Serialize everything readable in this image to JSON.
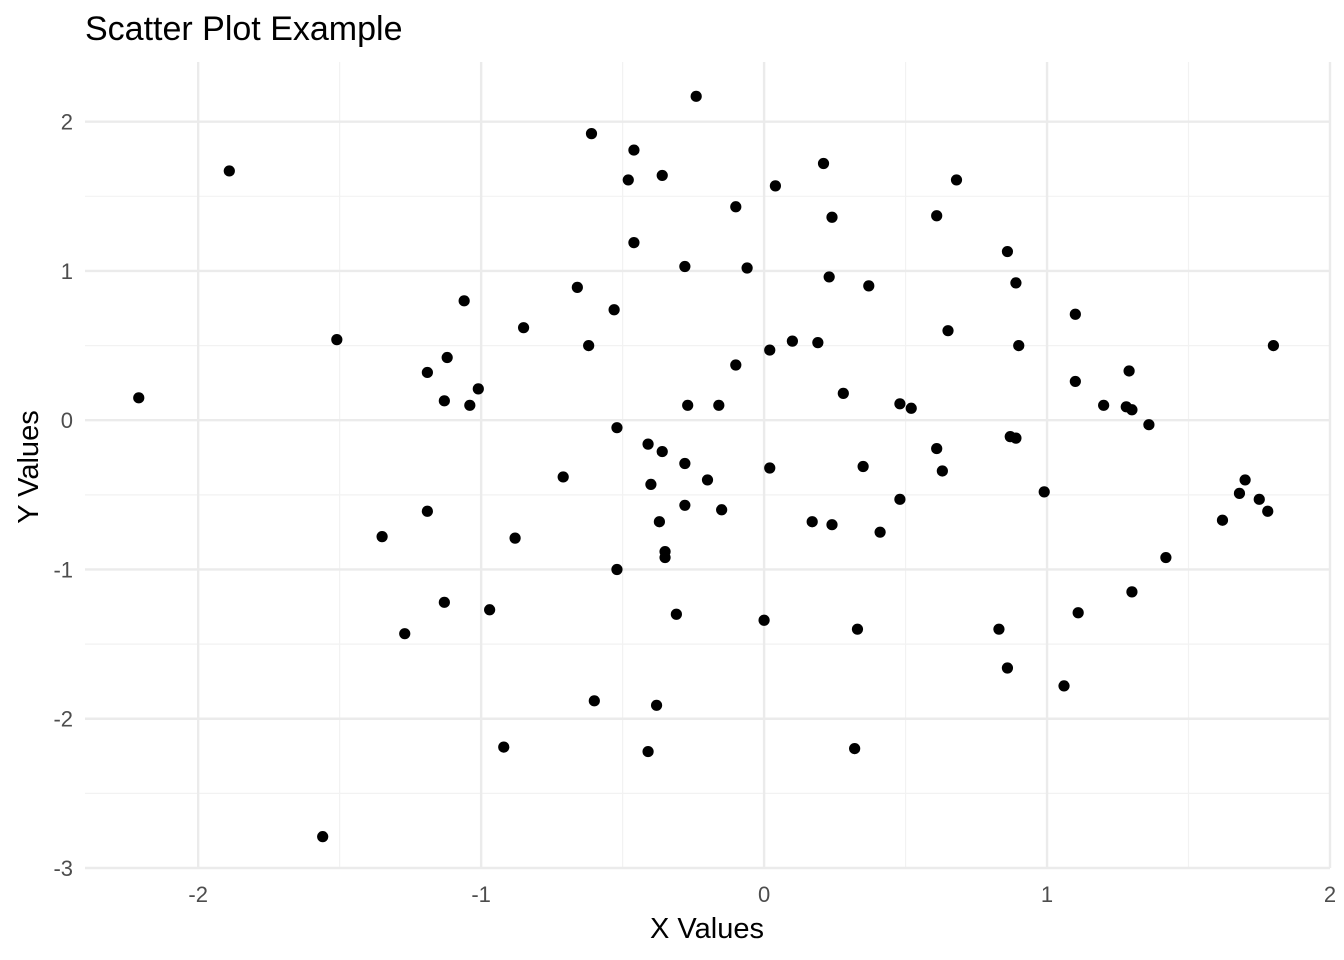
{
  "chart_data": {
    "type": "scatter",
    "title": "Scatter Plot Example",
    "xlabel": "X Values",
    "ylabel": "Y Values",
    "xlim": [
      -2.4,
      2.0
    ],
    "ylim": [
      -3.0,
      2.4
    ],
    "x_ticks": [
      -2,
      -1,
      0,
      1,
      2
    ],
    "y_ticks": [
      -3,
      -2,
      -1,
      0,
      1,
      2
    ],
    "x_tick_labels": [
      "-2",
      "-1",
      "0",
      "1",
      "2"
    ],
    "y_tick_labels": [
      "-3",
      "-2",
      "-1",
      "0",
      "1",
      "2"
    ],
    "grid": true,
    "point_color": "#000000",
    "points": [
      {
        "x": -0.24,
        "y": 2.17
      },
      {
        "x": -0.61,
        "y": 1.92
      },
      {
        "x": -0.46,
        "y": 1.81
      },
      {
        "x": -1.89,
        "y": 1.67
      },
      {
        "x": 0.21,
        "y": 1.72
      },
      {
        "x": -0.48,
        "y": 1.61
      },
      {
        "x": -0.36,
        "y": 1.64
      },
      {
        "x": 0.68,
        "y": 1.61
      },
      {
        "x": 0.04,
        "y": 1.57
      },
      {
        "x": -0.1,
        "y": 1.43
      },
      {
        "x": 0.24,
        "y": 1.36
      },
      {
        "x": 0.61,
        "y": 1.37
      },
      {
        "x": -0.46,
        "y": 1.19
      },
      {
        "x": 0.86,
        "y": 1.13
      },
      {
        "x": -0.28,
        "y": 1.03
      },
      {
        "x": -0.06,
        "y": 1.02
      },
      {
        "x": 0.23,
        "y": 0.96
      },
      {
        "x": 0.37,
        "y": 0.9
      },
      {
        "x": 0.89,
        "y": 0.92
      },
      {
        "x": -0.66,
        "y": 0.89
      },
      {
        "x": -1.06,
        "y": 0.8
      },
      {
        "x": -0.53,
        "y": 0.74
      },
      {
        "x": 1.1,
        "y": 0.71
      },
      {
        "x": -0.85,
        "y": 0.62
      },
      {
        "x": 0.65,
        "y": 0.6
      },
      {
        "x": -1.51,
        "y": 0.54
      },
      {
        "x": 0.1,
        "y": 0.53
      },
      {
        "x": 0.19,
        "y": 0.52
      },
      {
        "x": -0.62,
        "y": 0.5
      },
      {
        "x": 0.9,
        "y": 0.5
      },
      {
        "x": 1.8,
        "y": 0.5
      },
      {
        "x": 0.02,
        "y": 0.47
      },
      {
        "x": -1.12,
        "y": 0.42
      },
      {
        "x": -0.1,
        "y": 0.37
      },
      {
        "x": -1.19,
        "y": 0.32
      },
      {
        "x": 1.29,
        "y": 0.33
      },
      {
        "x": 1.1,
        "y": 0.26
      },
      {
        "x": -1.01,
        "y": 0.21
      },
      {
        "x": 0.28,
        "y": 0.18
      },
      {
        "x": -2.21,
        "y": 0.15
      },
      {
        "x": -1.13,
        "y": 0.13
      },
      {
        "x": -1.04,
        "y": 0.1
      },
      {
        "x": -0.27,
        "y": 0.1
      },
      {
        "x": -0.16,
        "y": 0.1
      },
      {
        "x": 0.48,
        "y": 0.11
      },
      {
        "x": 0.52,
        "y": 0.08
      },
      {
        "x": 1.2,
        "y": 0.1
      },
      {
        "x": 1.28,
        "y": 0.09
      },
      {
        "x": 1.3,
        "y": 0.07
      },
      {
        "x": 1.36,
        "y": -0.03
      },
      {
        "x": -0.52,
        "y": -0.05
      },
      {
        "x": -0.41,
        "y": -0.16
      },
      {
        "x": 0.87,
        "y": -0.11
      },
      {
        "x": 0.89,
        "y": -0.12
      },
      {
        "x": 0.61,
        "y": -0.19
      },
      {
        "x": -0.36,
        "y": -0.21
      },
      {
        "x": -0.28,
        "y": -0.29
      },
      {
        "x": 0.02,
        "y": -0.32
      },
      {
        "x": 0.35,
        "y": -0.31
      },
      {
        "x": 0.63,
        "y": -0.34
      },
      {
        "x": -0.71,
        "y": -0.38
      },
      {
        "x": -0.2,
        "y": -0.4
      },
      {
        "x": -0.4,
        "y": -0.43
      },
      {
        "x": 1.7,
        "y": -0.4
      },
      {
        "x": 0.99,
        "y": -0.48
      },
      {
        "x": 1.68,
        "y": -0.49
      },
      {
        "x": 0.48,
        "y": -0.53
      },
      {
        "x": 1.75,
        "y": -0.53
      },
      {
        "x": -0.28,
        "y": -0.57
      },
      {
        "x": -0.15,
        "y": -0.6
      },
      {
        "x": -1.19,
        "y": -0.61
      },
      {
        "x": 1.78,
        "y": -0.61
      },
      {
        "x": 1.62,
        "y": -0.67
      },
      {
        "x": -0.37,
        "y": -0.68
      },
      {
        "x": 0.17,
        "y": -0.68
      },
      {
        "x": 0.24,
        "y": -0.7
      },
      {
        "x": 0.41,
        "y": -0.75
      },
      {
        "x": -1.35,
        "y": -0.78
      },
      {
        "x": -0.88,
        "y": -0.79
      },
      {
        "x": -0.35,
        "y": -0.88
      },
      {
        "x": -0.35,
        "y": -0.92
      },
      {
        "x": 1.42,
        "y": -0.92
      },
      {
        "x": -0.52,
        "y": -1.0
      },
      {
        "x": 1.3,
        "y": -1.15
      },
      {
        "x": -1.13,
        "y": -1.22
      },
      {
        "x": -0.97,
        "y": -1.27
      },
      {
        "x": 1.11,
        "y": -1.29
      },
      {
        "x": -0.31,
        "y": -1.3
      },
      {
        "x": 0.0,
        "y": -1.34
      },
      {
        "x": 0.33,
        "y": -1.4
      },
      {
        "x": 0.83,
        "y": -1.4
      },
      {
        "x": -1.27,
        "y": -1.43
      },
      {
        "x": 0.86,
        "y": -1.66
      },
      {
        "x": 1.06,
        "y": -1.78
      },
      {
        "x": -0.6,
        "y": -1.88
      },
      {
        "x": -0.38,
        "y": -1.91
      },
      {
        "x": -0.92,
        "y": -2.19
      },
      {
        "x": 0.32,
        "y": -2.2
      },
      {
        "x": -0.41,
        "y": -2.22
      },
      {
        "x": -1.56,
        "y": -2.79
      }
    ]
  }
}
